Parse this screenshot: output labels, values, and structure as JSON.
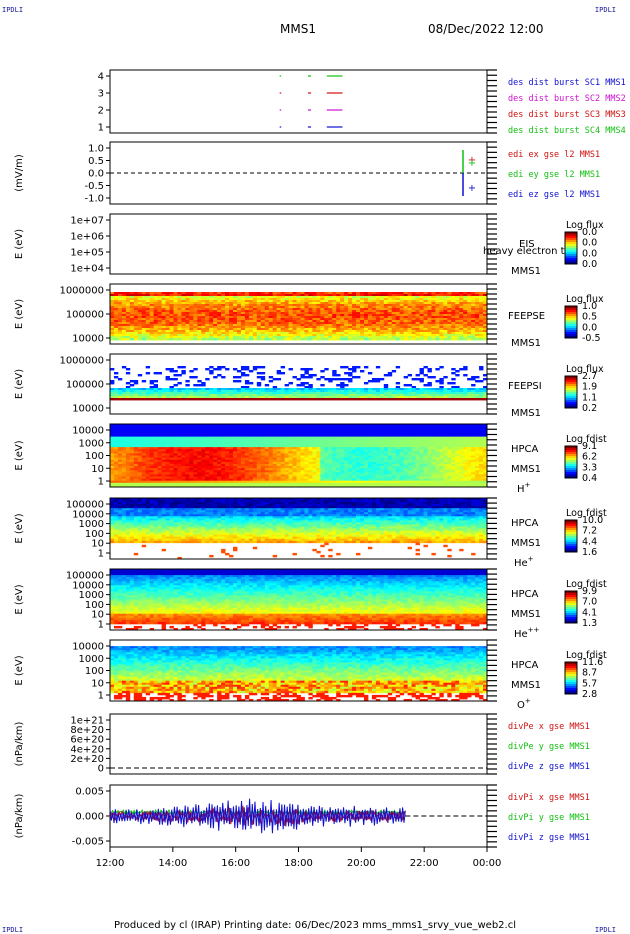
{
  "corners": {
    "tl": "IPDLI",
    "tr": "IPDLI",
    "bl": "IPDLI",
    "br": "IPDLI"
  },
  "header": {
    "mission": "MMS1",
    "datetime": "08/Dec/2022 12:00"
  },
  "footer": {
    "text": "Produced by cl (IRAP)   Printing date: 06/Dec/2023   mms_mms1_srvy_vue_web2.cl"
  },
  "colors": {
    "red": "#d01010",
    "green": "#10c010",
    "blue": "#1010d0",
    "magenta": "#d010d0"
  },
  "chart_data": [
    {
      "type": "line",
      "id": "burst",
      "yticks": [
        "4",
        "3",
        "2",
        "1"
      ],
      "legend": [
        {
          "text": "des dist burst SC1 MMS1",
          "color": "#1010d0"
        },
        {
          "text": "des dist burst SC2 MMS2",
          "color": "#d010d0"
        },
        {
          "text": "des dist burst SC3 MMS3",
          "color": "#d01010"
        },
        {
          "text": "des dist burst SC4 MMS4",
          "color": "#10c010"
        }
      ],
      "burst_intervals_hours": [
        [
          17.4,
          17.45
        ],
        [
          18.3,
          18.4
        ],
        [
          18.9,
          19.4
        ]
      ]
    },
    {
      "type": "line",
      "id": "edi",
      "ylabel": "(mV/m)",
      "yticks": [
        "1.0",
        "0.5",
        "0.0",
        "-0.5",
        "-1.0"
      ],
      "legend": [
        {
          "text": "edi ex gse l2 MMS1",
          "color": "#d01010"
        },
        {
          "text": "edi ey gse l2 MMS1",
          "color": "#10c010"
        },
        {
          "text": "edi ez gse l2 MMS1",
          "color": "#1010d0"
        }
      ]
    },
    {
      "type": "heatmap",
      "id": "eis",
      "ylabel": "E (eV)",
      "yticks": [
        "1e+07",
        "1e+06",
        "1e+05",
        "1e+04"
      ],
      "labels": [
        "EIS",
        "MMS1"
      ],
      "overlay": "heavy electron to",
      "cbar_title": "Log flux",
      "cbar_ticks": [
        "0.0",
        "0.0",
        "0.0",
        "0.0"
      ]
    },
    {
      "type": "heatmap",
      "id": "feepse",
      "ylabel": "E (eV)",
      "yticks": [
        "1000000",
        "100000",
        "10000"
      ],
      "labels": [
        "FEEPSE",
        "MMS1"
      ],
      "cbar_title": "Log flux",
      "cbar_ticks": [
        "1.0",
        "0.5",
        "0.0",
        "-0.5"
      ]
    },
    {
      "type": "heatmap",
      "id": "feepsi",
      "ylabel": "E (eV)",
      "yticks": [
        "1000000",
        "100000",
        "10000"
      ],
      "labels": [
        "FEEPSI",
        "MMS1"
      ],
      "cbar_title": "Log flux",
      "cbar_ticks": [
        "2.7",
        "1.9",
        "1.1",
        "0.2"
      ]
    },
    {
      "type": "heatmap",
      "id": "hpca_h",
      "ylabel": "E (eV)",
      "yticks": [
        "10000",
        "1000",
        "100",
        "10",
        "1"
      ],
      "labels": [
        "HPCA",
        "MMS1",
        "H"
      ],
      "species_sup": "+",
      "cbar_title": "Log fdist",
      "cbar_ticks": [
        "9.1",
        "6.2",
        "3.3",
        "0.4"
      ]
    },
    {
      "type": "heatmap",
      "id": "hpca_he",
      "ylabel": "E (eV)",
      "yticks": [
        "100000",
        "10000",
        "1000",
        "100",
        "10",
        "1"
      ],
      "labels": [
        "HPCA",
        "MMS1",
        "He"
      ],
      "species_sup": "+",
      "cbar_title": "Log fdist",
      "cbar_ticks": [
        "10.0",
        "7.2",
        "4.4",
        "1.6"
      ]
    },
    {
      "type": "heatmap",
      "id": "hpca_hepp",
      "ylabel": "E (eV)",
      "yticks": [
        "100000",
        "10000",
        "1000",
        "100",
        "10",
        "1"
      ],
      "labels": [
        "HPCA",
        "MMS1",
        "He"
      ],
      "species_sup": "++",
      "cbar_title": "Log fdist",
      "cbar_ticks": [
        "9.9",
        "7.0",
        "4.1",
        "1.3"
      ]
    },
    {
      "type": "heatmap",
      "id": "hpca_o",
      "ylabel": "E (eV)",
      "yticks": [
        "10000",
        "1000",
        "100",
        "10",
        "1"
      ],
      "labels": [
        "HPCA",
        "MMS1",
        "O"
      ],
      "species_sup": "+",
      "cbar_title": "Log fdist",
      "cbar_ticks": [
        "11.6",
        "8.7",
        "5.7",
        "2.8"
      ]
    },
    {
      "type": "line",
      "id": "divpe",
      "ylabel": "(nPa/km)",
      "yticks": [
        "1e+21",
        "8e+20",
        "6e+20",
        "4e+20",
        "2e+20",
        "0"
      ],
      "legend": [
        {
          "text": "divPe x gse MMS1",
          "color": "#d01010"
        },
        {
          "text": "divPe y gse MMS1",
          "color": "#10c010"
        },
        {
          "text": "divPe z gse MMS1",
          "color": "#1010d0"
        }
      ]
    },
    {
      "type": "line",
      "id": "divpi",
      "ylabel": "(nPa/km)",
      "yticks": [
        "0.005",
        "0.000",
        "-0.005"
      ],
      "legend": [
        {
          "text": "divPi x gse MMS1",
          "color": "#d01010"
        },
        {
          "text": "divPi y gse MMS1",
          "color": "#10c010"
        },
        {
          "text": "divPi z gse MMS1",
          "color": "#1010d0"
        }
      ]
    }
  ],
  "xaxis": {
    "ticks": [
      "12:00",
      "14:00",
      "16:00",
      "18:00",
      "20:00",
      "22:00",
      "00:00"
    ]
  }
}
